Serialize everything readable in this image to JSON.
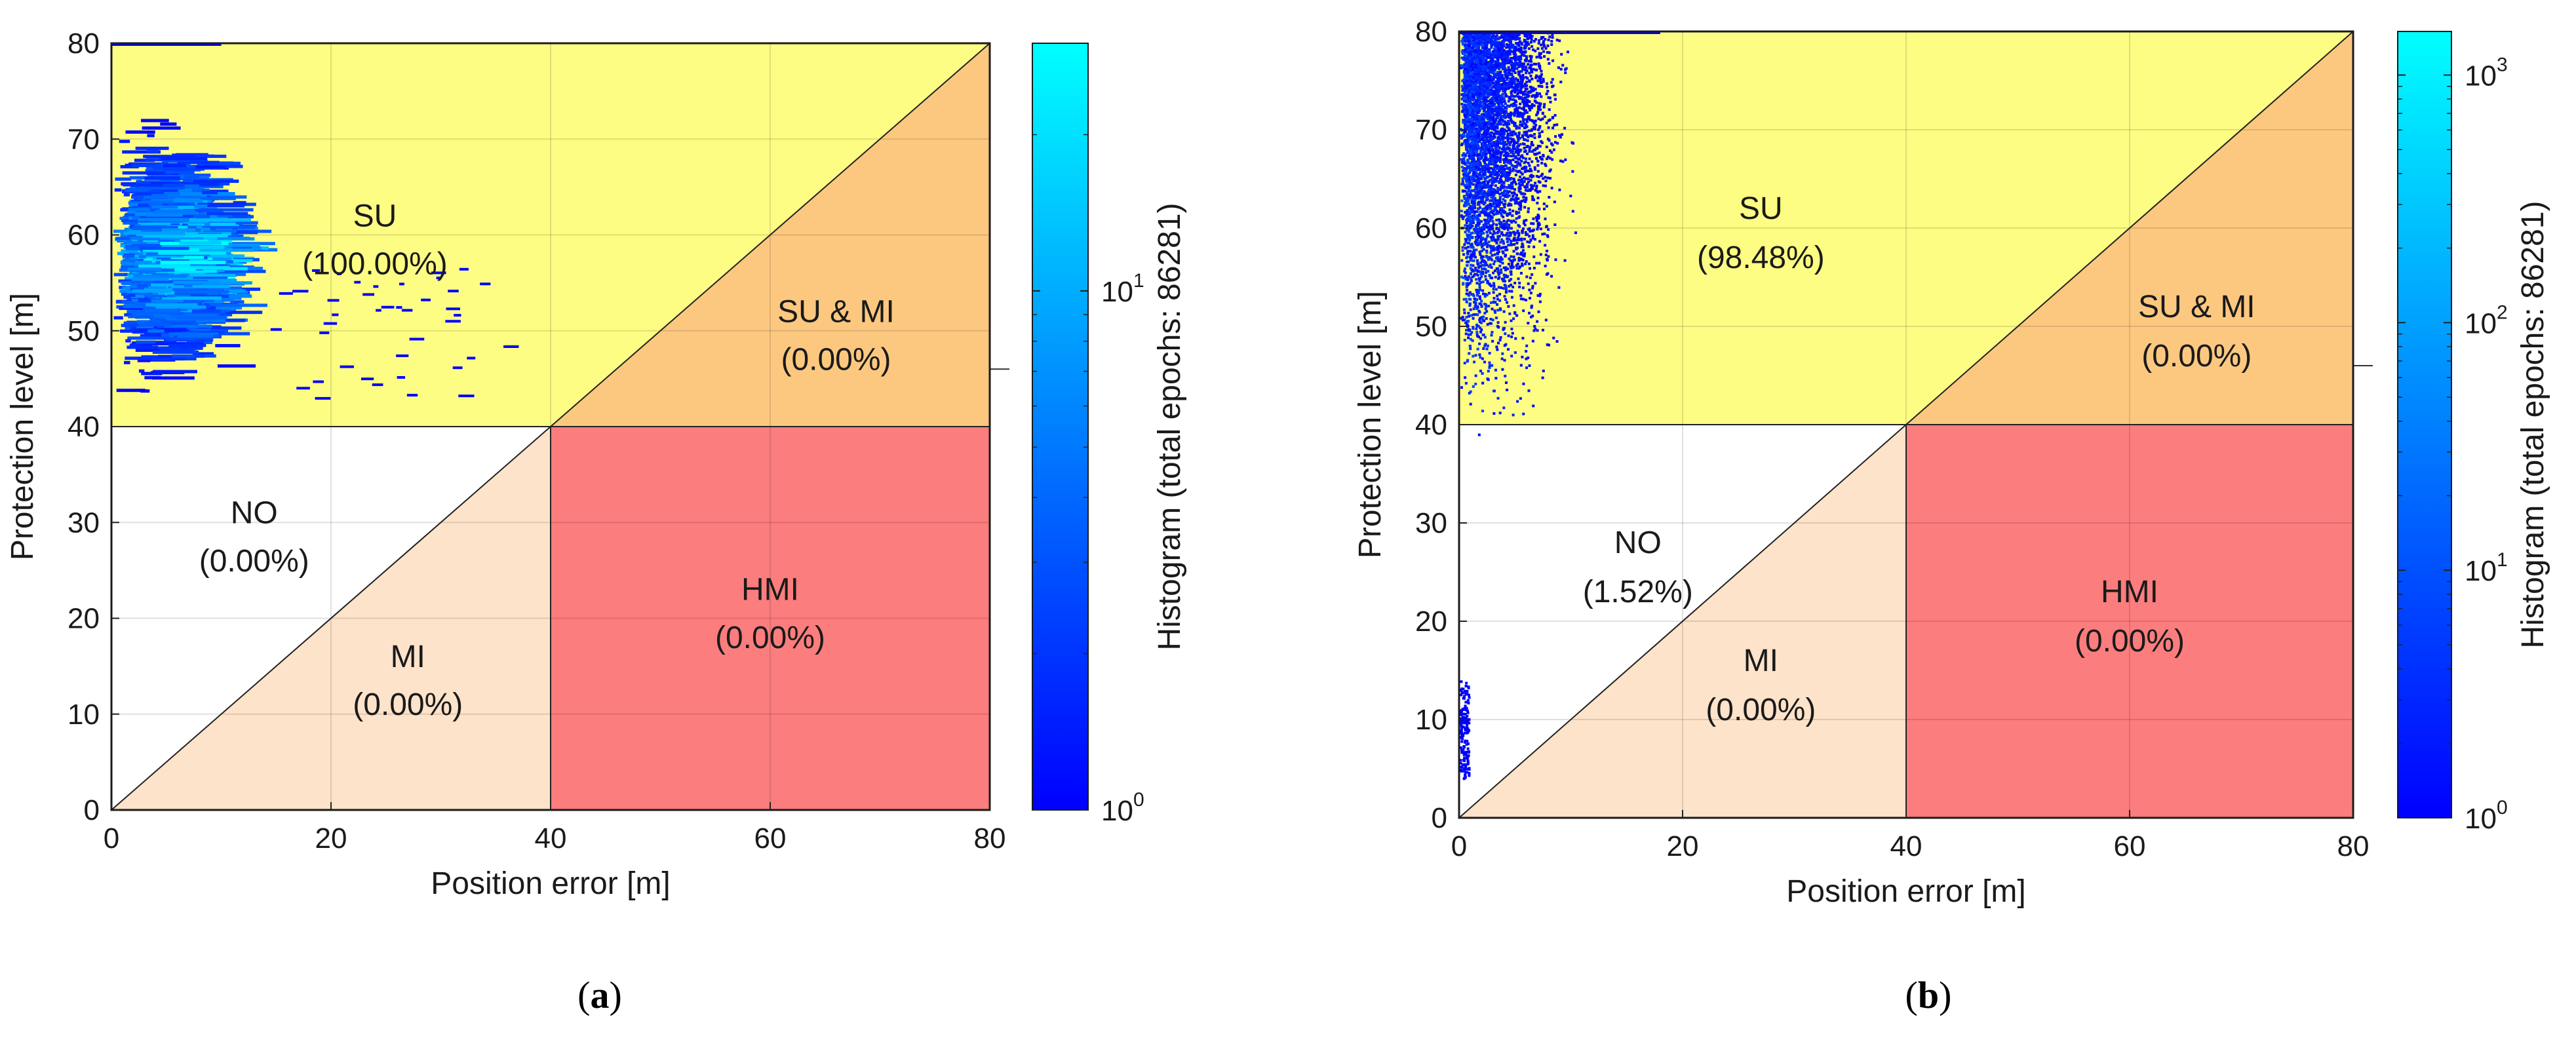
{
  "colors": {
    "su": "#fdfd84",
    "su_mi": "#fcc880",
    "mi": "#fde3c9",
    "hmi": "#fc7d7d",
    "no": "#ffffff",
    "cmap_low": "#0000ff",
    "cmap_high": "#00ffff"
  },
  "chart_data": [
    {
      "type": "heatmap",
      "panel_label": "a",
      "xlabel": "Position error [m]",
      "ylabel": "Protection level [m]",
      "xlim": [
        0,
        80
      ],
      "ylim": [
        0,
        80
      ],
      "xticks": [
        "0",
        "20",
        "40",
        "60",
        "80"
      ],
      "yticks": [
        "0",
        "10",
        "20",
        "30",
        "40",
        "50",
        "60",
        "70",
        "80"
      ],
      "colorbar": {
        "label": "Histogram (total epochs: 86281)",
        "scale": "log",
        "range": [
          1,
          30
        ],
        "tick_base": "10",
        "tick_exponents": [
          "0",
          "1"
        ]
      },
      "regions": [
        {
          "key": "su",
          "name": "SU",
          "percent": "(100.00%)"
        },
        {
          "key": "su_mi",
          "name": "SU & MI",
          "percent": "(0.00%)"
        },
        {
          "key": "no",
          "name": "NO",
          "percent": "(0.00%)"
        },
        {
          "key": "mi",
          "name": "MI",
          "percent": "(0.00%)"
        },
        {
          "key": "hmi",
          "name": "HMI",
          "percent": "(0.00%)"
        }
      ],
      "density": {
        "x_range": [
          0,
          36
        ],
        "y_range": [
          43,
          80
        ],
        "x_peak": 5,
        "x_spread": 6,
        "y_peak": 58,
        "y_spread": 8,
        "style": "horizontal-streaks",
        "total_epochs": 86281
      }
    },
    {
      "type": "heatmap",
      "panel_label": "b",
      "xlabel": "Position error [m]",
      "ylabel": "Protection level [m]",
      "xlim": [
        0,
        80
      ],
      "ylim": [
        0,
        80
      ],
      "xticks": [
        "0",
        "20",
        "40",
        "60",
        "80"
      ],
      "yticks": [
        "0",
        "10",
        "20",
        "30",
        "40",
        "50",
        "60",
        "70",
        "80"
      ],
      "colorbar": {
        "label": "Histogram (total epochs: 86281)",
        "scale": "log",
        "range": [
          1,
          1500
        ],
        "tick_base": "10",
        "tick_exponents": [
          "0",
          "1",
          "2",
          "3"
        ]
      },
      "regions": [
        {
          "key": "su",
          "name": "SU",
          "percent": "(98.48%)"
        },
        {
          "key": "su_mi",
          "name": "SU & MI",
          "percent": "(0.00%)"
        },
        {
          "key": "no",
          "name": "NO",
          "percent": "(1.52%)"
        },
        {
          "key": "mi",
          "name": "MI",
          "percent": "(0.00%)"
        },
        {
          "key": "hmi",
          "name": "HMI",
          "percent": "(0.00%)"
        }
      ],
      "density": {
        "x_range": [
          0,
          23
        ],
        "y_range": [
          4,
          80
        ],
        "x_peak": 3,
        "x_spread": 4,
        "y_peak": 65,
        "y_spread": 14,
        "style": "vertical-scatter",
        "total_epochs": 86281
      }
    }
  ]
}
